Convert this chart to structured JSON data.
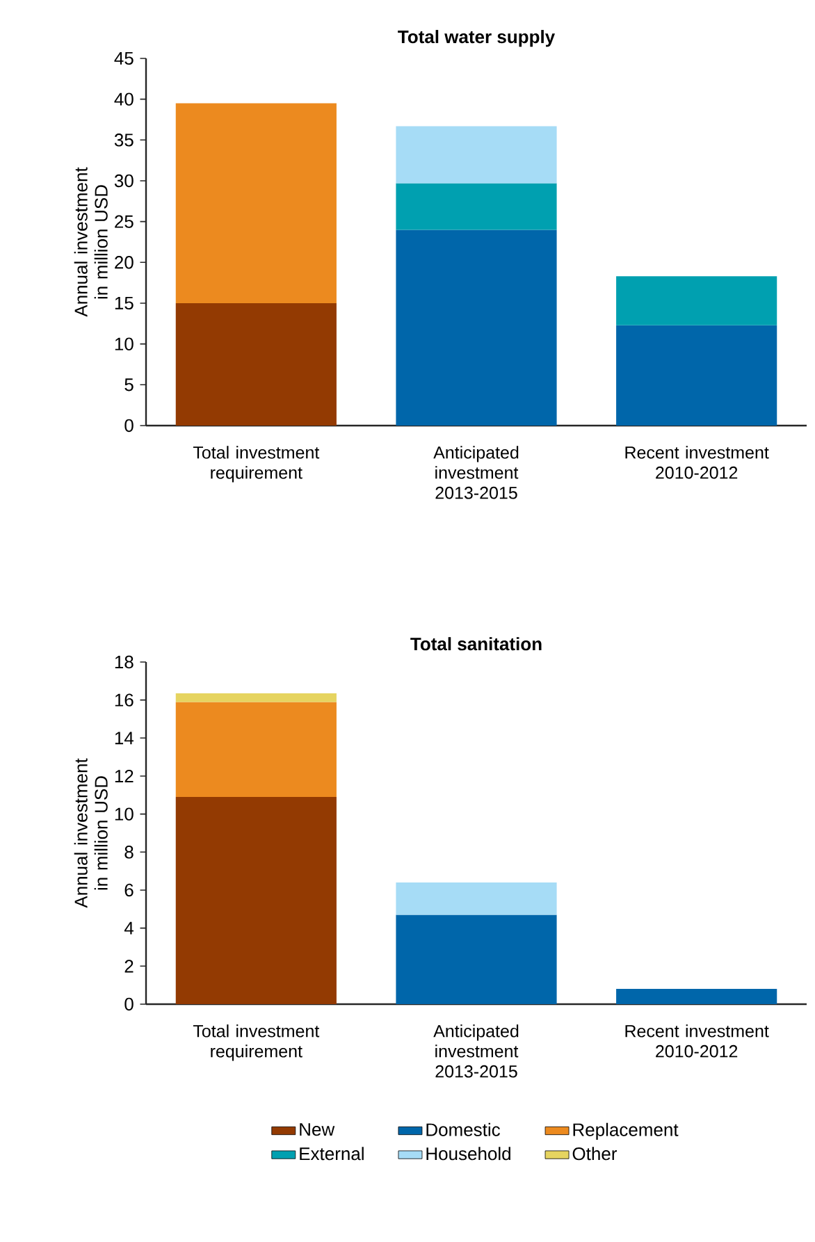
{
  "chart_data": [
    {
      "type": "bar",
      "stacked": true,
      "title": "Total water supply",
      "ylabel": "Annual investment in million USD",
      "categories": [
        "Total investment requirement",
        "Anticipated investment 2013-2015",
        "Recent investment 2010-2012"
      ],
      "ylim": [
        0,
        45
      ],
      "yticks": [
        0,
        5,
        10,
        15,
        20,
        25,
        30,
        35,
        40,
        45
      ],
      "grid": false,
      "series": [
        {
          "color": "#933a02",
          "values": [
            15,
            null,
            null
          ]
        },
        {
          "color": "#0066aa",
          "values": [
            null,
            24,
            12.3
          ]
        },
        {
          "color": "#ec8a1f",
          "values": [
            24.5,
            null,
            null
          ]
        },
        {
          "color": "#00a0b0",
          "values": [
            null,
            5.7,
            6
          ]
        },
        {
          "color": "#a6dcf6",
          "values": [
            null,
            7,
            null
          ]
        }
      ]
    },
    {
      "type": "bar",
      "stacked": true,
      "title": "Total sanitation",
      "ylabel": "Annual investment in million USD",
      "categories": [
        "Total investment requirement",
        "Anticipated investment 2013-2015",
        "Recent investment 2010-2012"
      ],
      "ylim": [
        0,
        18
      ],
      "yticks": [
        0,
        2,
        4,
        6,
        8,
        10,
        12,
        14,
        16,
        18
      ],
      "grid": false,
      "legend": "bottom",
      "series": [
        {
          "name": "New",
          "color": "#933a02",
          "values": [
            10.9,
            null,
            null
          ]
        },
        {
          "name": "Domestic",
          "color": "#0066aa",
          "values": [
            null,
            4.7,
            0.8
          ]
        },
        {
          "name": "Replacement",
          "color": "#ec8a1f",
          "values": [
            5,
            null,
            null
          ]
        },
        {
          "name": "External",
          "color": "#00a0b0",
          "values": [
            null,
            null,
            null
          ]
        },
        {
          "name": "Household",
          "color": "#a6dcf6",
          "values": [
            null,
            1.7,
            null
          ]
        },
        {
          "name": "Other",
          "color": "#e6d460",
          "values": [
            0.45,
            null,
            null
          ]
        }
      ]
    }
  ]
}
